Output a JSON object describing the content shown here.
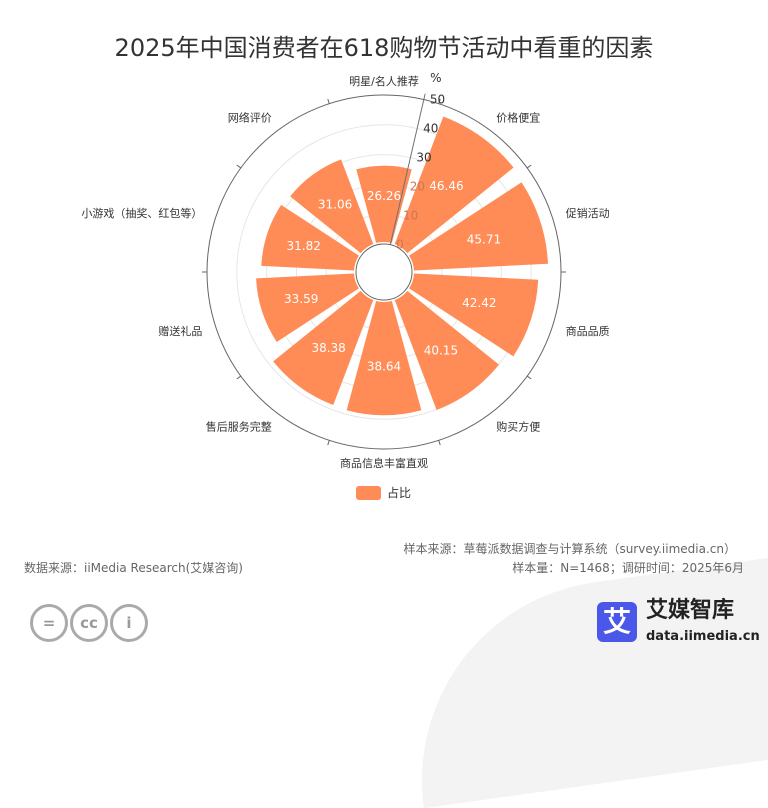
{
  "title": "2025年中国消费者在618购物节活动中看重的因素",
  "chart_data": {
    "type": "polar-bar",
    "title": "2025年中国消费者在618购物节活动中看重的因素",
    "categories": [
      "明星/名人推荐",
      "价格便宜",
      "促销活动",
      "商品品质",
      "购买方便",
      "商品信息丰富直观",
      "售后服务完整",
      "赠送礼品",
      "小游戏（抽奖、红包等）",
      "网络评价"
    ],
    "values": [
      26.26,
      46.46,
      45.71,
      42.42,
      40.15,
      38.64,
      38.38,
      33.59,
      31.82,
      31.06
    ],
    "radial_unit": "%",
    "radial_ticks": [
      0,
      10,
      20,
      30,
      40,
      50
    ],
    "rlim": [
      0,
      50
    ],
    "legend": "占比",
    "legend_position": "bottom",
    "bar_color": "#ff8c57"
  },
  "footer": {
    "sample_source": "样本来源：草莓派数据调查与计算系统（survey.iimedia.cn）",
    "data_source": "数据来源：iiMedia Research(艾媒咨询)",
    "sample_size": "样本量：N=1468；调研时间：2025年6月",
    "brand": "艾媒智库",
    "brand_url": "data.iimedia.cn",
    "logo_char": "艾"
  }
}
